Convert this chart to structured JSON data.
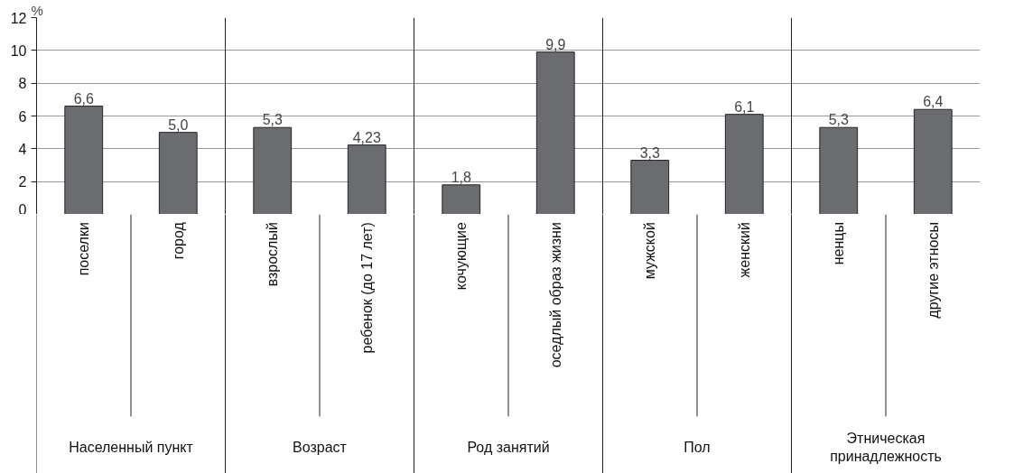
{
  "chart_data": {
    "type": "bar",
    "ylabel": "%",
    "categories": [
      "поселки",
      "город",
      "взрослый",
      "ребенок (до 17 лет)",
      "кочующие",
      "оседлый образ жизни",
      "мужской",
      "женский",
      "ненцы",
      "другие этносы"
    ],
    "values": [
      6.6,
      5.0,
      5.3,
      4.23,
      1.8,
      9.9,
      3.3,
      6.1,
      5.3,
      6.4
    ],
    "value_labels": [
      "6,6",
      "5,0",
      "5,3",
      "4,23",
      "1,8",
      "9,9",
      "3,3",
      "6,1",
      "5,3",
      "6,4"
    ],
    "color": "#6b6c70",
    "annotations": [
      "Населенный пункт",
      "Возраст",
      "Род занятий",
      "Пол",
      "Этническая принадлежность"
    ],
    "ylim": [
      0,
      12
    ],
    "yticks": [
      0,
      2,
      4,
      6,
      8,
      10,
      12
    ],
    "grid": "y"
  }
}
